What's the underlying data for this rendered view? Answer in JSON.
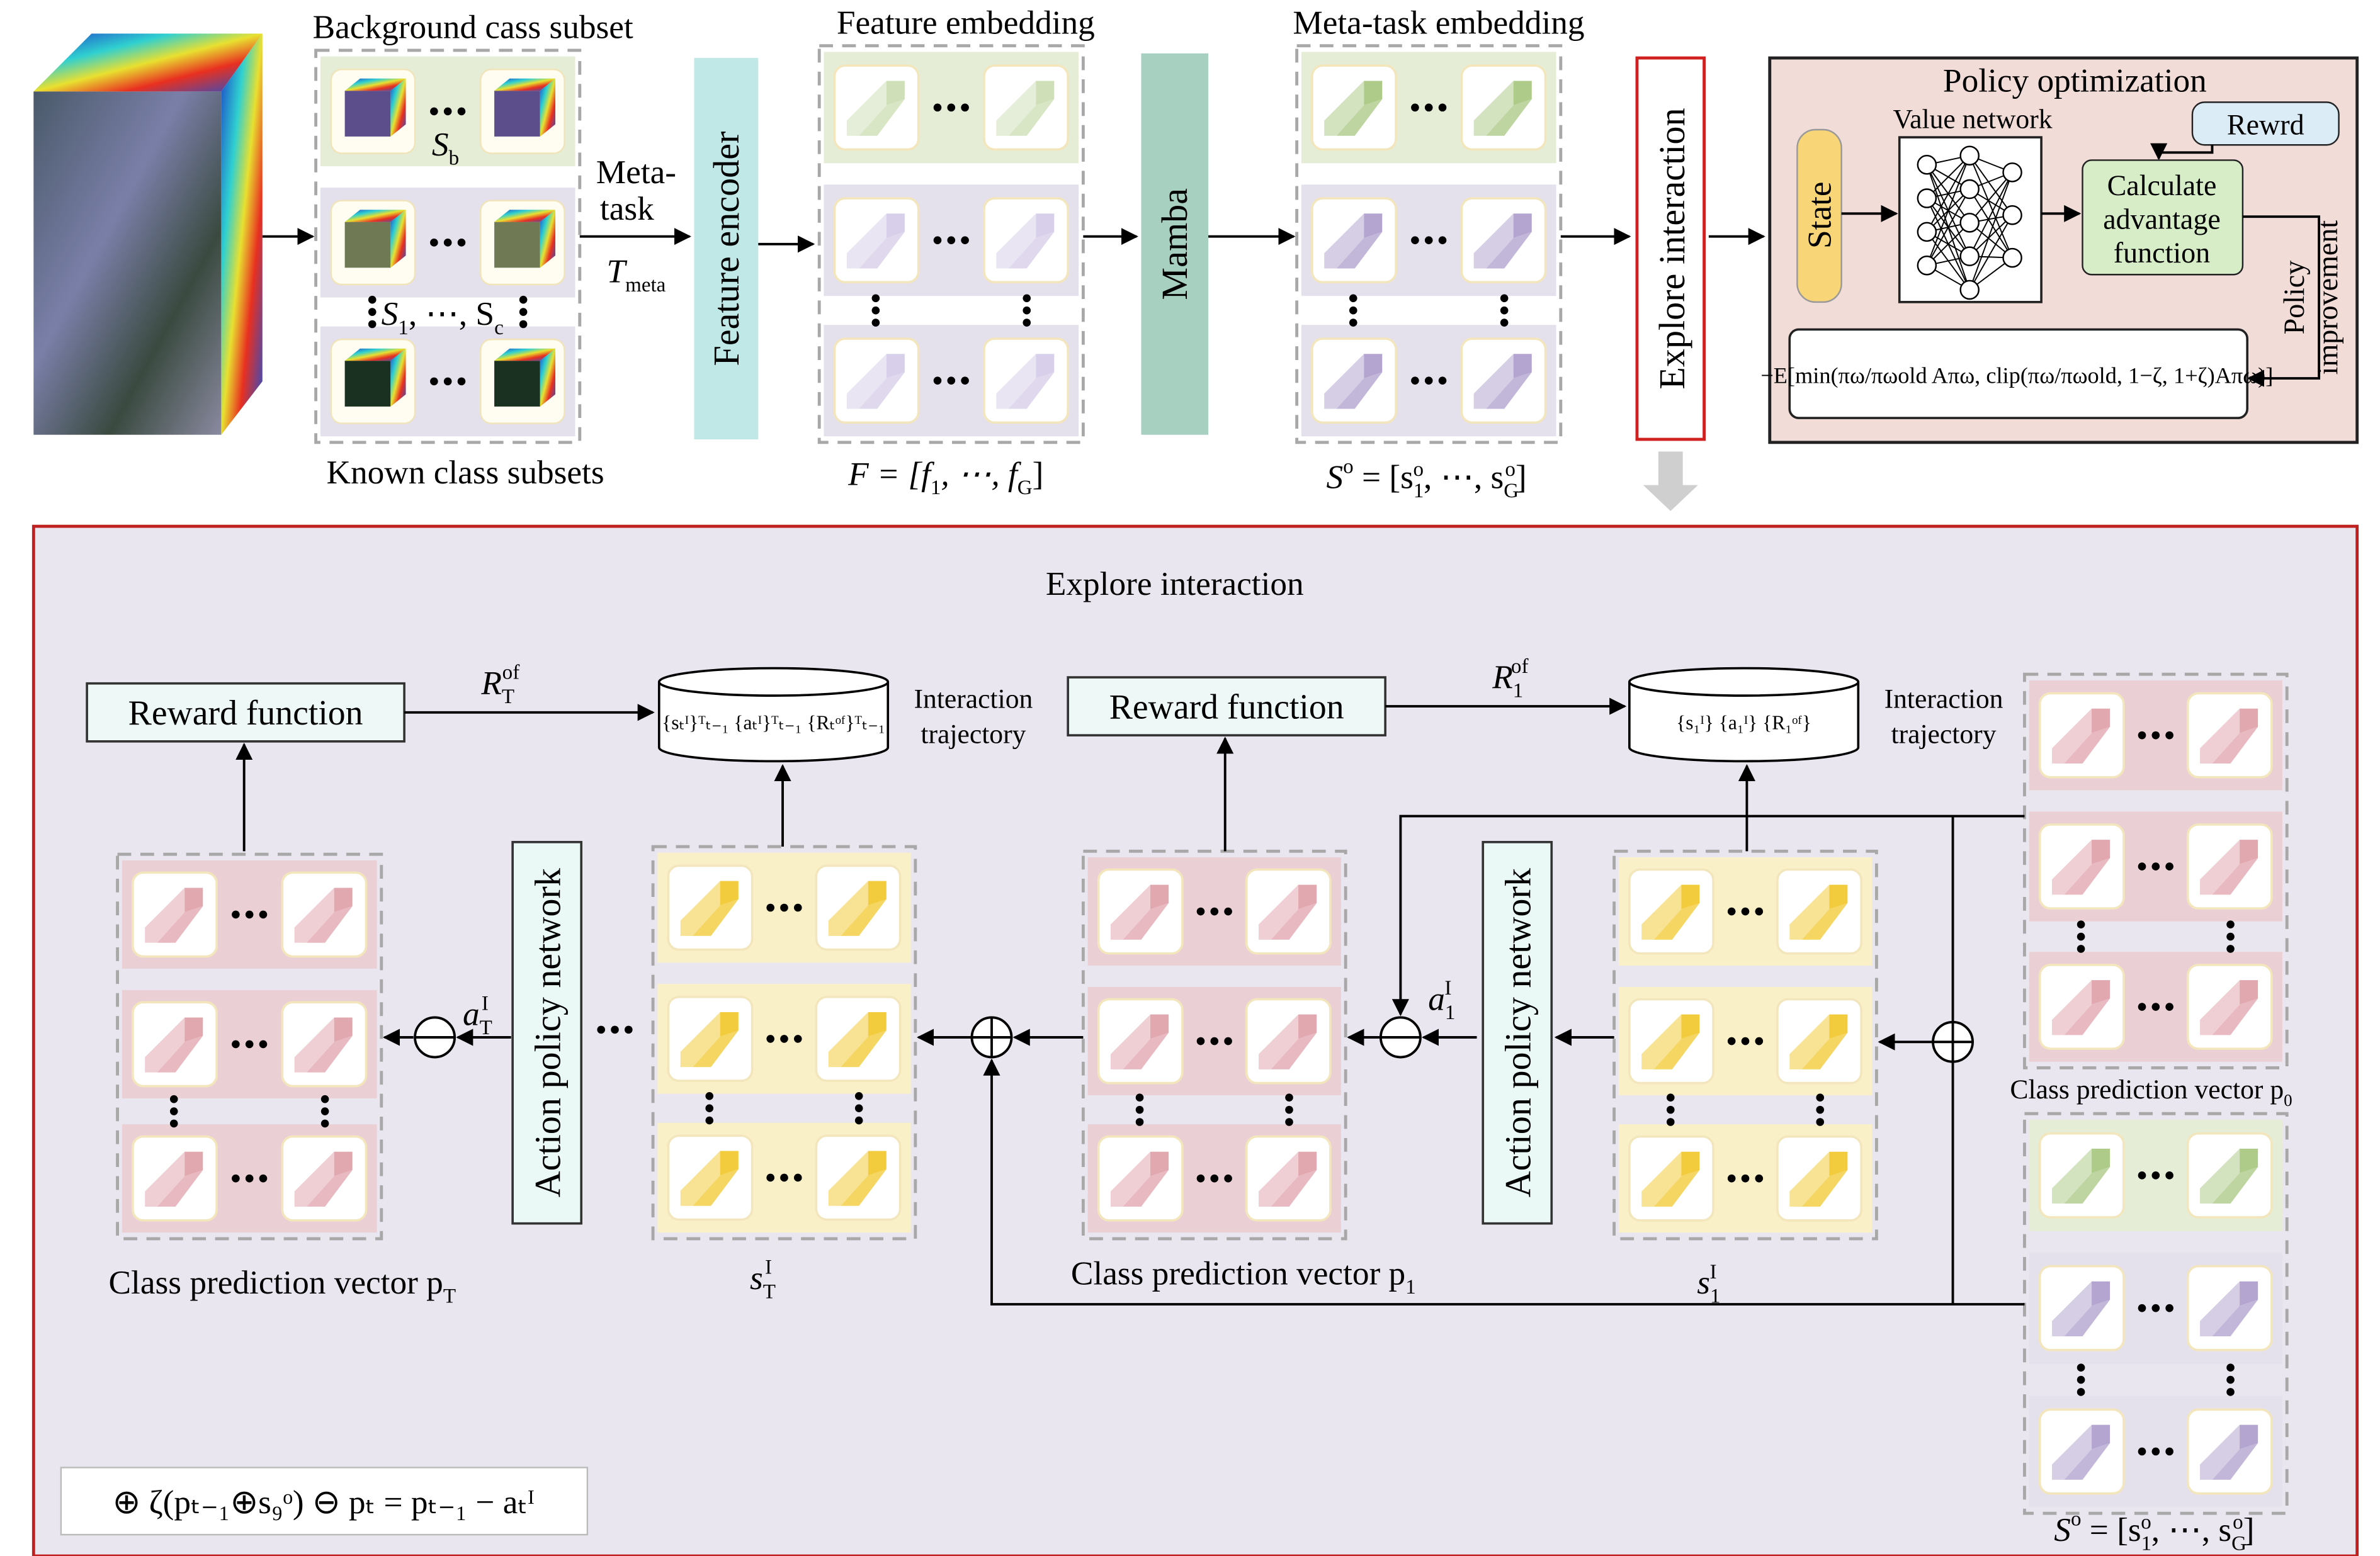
{
  "top": {
    "bg_title": "Background cass subset",
    "sb": [
      "S",
      "b"
    ],
    "sc": [
      "S",
      "1",
      ", ⋯, S",
      "c"
    ],
    "known_title": "Known class subsets",
    "meta_task": [
      "Meta-",
      "task"
    ],
    "t_meta": [
      "T",
      "meta"
    ],
    "feature_encoder": "Feature encoder",
    "feature_embedding": "Feature embedding",
    "f_formula": [
      "F = [f",
      "1",
      ", ⋯, f",
      "G",
      "]"
    ],
    "mamba": "Mamba",
    "meta_embedding": "Meta-task embedding",
    "s_formula": [
      "S",
      "o",
      " = [s",
      "1",
      "o",
      ", ⋯, s",
      "G",
      "o",
      "]"
    ],
    "explore_side": "Explore interaction"
  },
  "policy": {
    "title": "Policy optimization",
    "value_network": "Value network",
    "rewrd": "Rewrd",
    "state": "State",
    "advantage": [
      "Calculate",
      "advantage",
      "function"
    ],
    "formula": "−E[min(πω/πωold Aπω, clip(πω/πωold, 1−ζ, 1+ζ)Aπω)]",
    "improvement": [
      "Policy",
      "improvement"
    ]
  },
  "explore": {
    "title": "Explore interaction",
    "reward_T": "Reward function",
    "reward_1": "Reward function",
    "r_T": [
      "R",
      "T",
      "of"
    ],
    "r_1": [
      "R",
      "1",
      "of"
    ],
    "traj_T": "{sₜᴵ}ᵀₜ₋₁ {aₜᴵ}ᵀₜ₋₁ {Rₜᵒᶠ}ᵀₜ₋₁",
    "traj_1": "{s₁ᴵ} {a₁ᴵ} {R₁ᵒᶠ}",
    "interaction_T": [
      "Interaction",
      "trajectory"
    ],
    "interaction_1": [
      "Interaction",
      "trajectory"
    ],
    "action_T": "Action policy network",
    "action_1": "Action policy network",
    "a_T": [
      "a",
      "T",
      "I"
    ],
    "a_1": [
      "a",
      "1",
      "I"
    ],
    "p_T": [
      "Class prediction vector p",
      "T"
    ],
    "p_1": [
      "Class prediction vector p",
      "1"
    ],
    "p_0": [
      "Class prediction vector p",
      "0"
    ],
    "s_T": [
      "s",
      "T",
      "I"
    ],
    "s_1": [
      "s",
      "1",
      "I"
    ],
    "s_o": [
      "S",
      "o",
      " = [s",
      "1",
      "o",
      ", ⋯, s",
      "G",
      "o",
      "]"
    ],
    "legend": "⊕ ζ(pₜ₋₁⊕s₉ᵒ) ⊖ pₜ = pₜ₋₁ − aₜᴵ"
  }
}
